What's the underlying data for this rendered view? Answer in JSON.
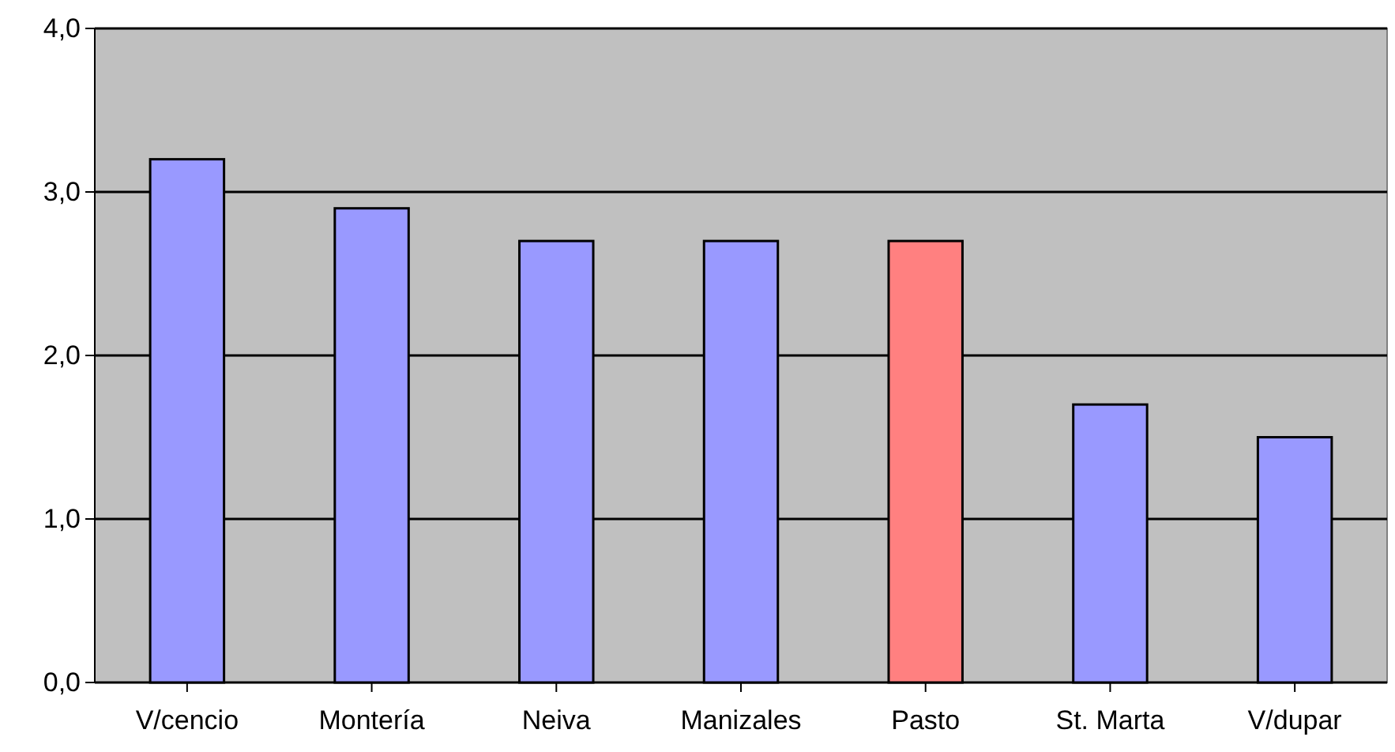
{
  "chart_data": {
    "type": "bar",
    "categories": [
      "V/cencio",
      "Montería",
      "Neiva",
      "Manizales",
      "Pasto",
      "St. Marta",
      "V/dupar"
    ],
    "values": [
      3.2,
      2.9,
      2.7,
      2.7,
      2.7,
      1.7,
      1.5
    ],
    "colors": [
      "#9999ff",
      "#9999ff",
      "#9999ff",
      "#9999ff",
      "#ff8080",
      "#9999ff",
      "#9999ff"
    ],
    "ylim": [
      0,
      4
    ],
    "yticks": [
      {
        "value": 0,
        "label": "0,0"
      },
      {
        "value": 1,
        "label": "1,0"
      },
      {
        "value": 2,
        "label": "2,0"
      },
      {
        "value": 3,
        "label": "3,0"
      },
      {
        "value": 4,
        "label": "4,0"
      }
    ],
    "grid": "y"
  }
}
